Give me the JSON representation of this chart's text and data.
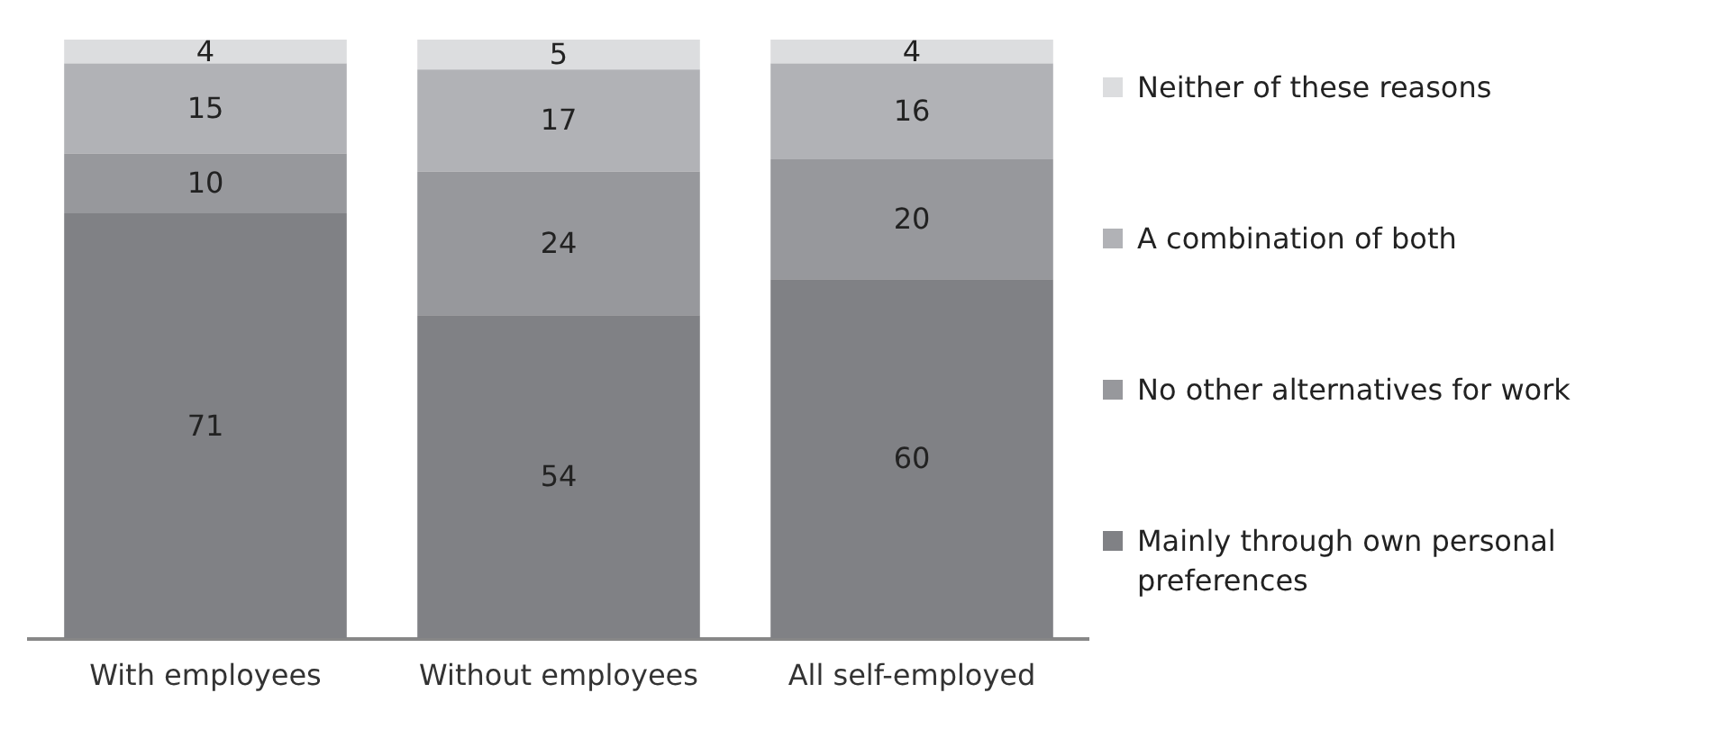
{
  "chart_data": {
    "type": "bar",
    "stacked": true,
    "categories": [
      "With employees",
      "Without employees",
      "All self-employed"
    ],
    "series": [
      {
        "name": "Mainly through own personal preferences",
        "color": "#808185",
        "values": [
          71,
          54,
          60
        ]
      },
      {
        "name": "No other alternatives for work",
        "color": "#97989c",
        "values": [
          10,
          24,
          20
        ]
      },
      {
        "name": "A combination of both",
        "color": "#b1b2b6",
        "values": [
          15,
          17,
          16
        ]
      },
      {
        "name": "Neither of these reasons",
        "color": "#dcdddf",
        "values": [
          4,
          5,
          4
        ]
      }
    ],
    "data_labels": true,
    "legend": "right",
    "grid": false,
    "tick_labels": "x"
  }
}
